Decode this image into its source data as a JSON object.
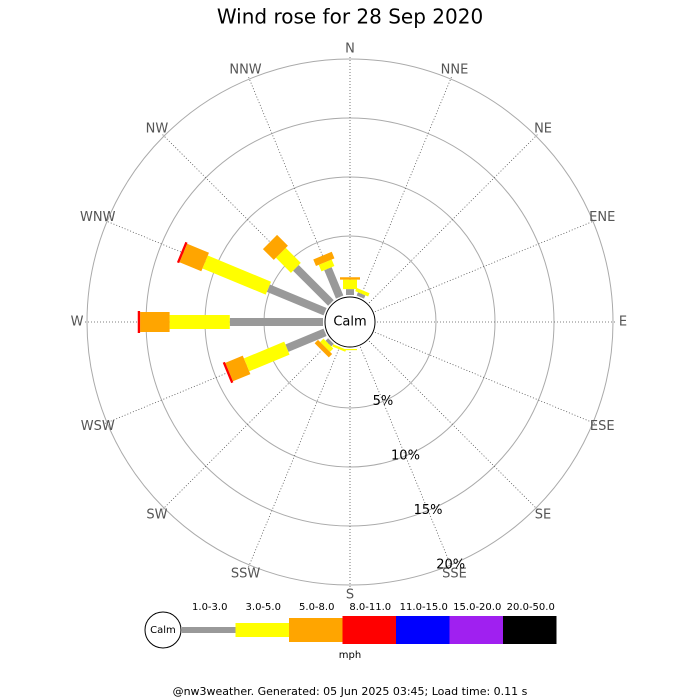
{
  "chart_data": {
    "type": "windrose",
    "title": "Wind rose for 28 Sep 2020",
    "calm_label": "Calm",
    "unit_label": "mph",
    "footer": "@nw3weather. Generated: 05 Jun 2025 03:45; Load time: 0.11 s",
    "categories": [
      "N",
      "NNE",
      "NE",
      "ENE",
      "E",
      "ESE",
      "SE",
      "SSE",
      "S",
      "SSW",
      "SW",
      "WSW",
      "W",
      "WNW",
      "NW",
      "NNW"
    ],
    "rlim": [
      0,
      20
    ],
    "rticks": [
      {
        "value": 5,
        "label": "5%"
      },
      {
        "value": 10,
        "label": "10%"
      },
      {
        "value": 15,
        "label": "15%"
      },
      {
        "value": 20,
        "label": "20%"
      }
    ],
    "series": [
      {
        "name": "1.0-3.0",
        "color": "#999999",
        "values": [
          0.5,
          0.3,
          0,
          0,
          0,
          0,
          0,
          0,
          0,
          0,
          0.3,
          3.5,
          7.9,
          5.2,
          4.2,
          2.6
        ]
      },
      {
        "name": "3.0-5.0",
        "color": "#ffff00",
        "values": [
          0.8,
          0.3,
          0,
          0,
          0,
          0,
          0,
          0,
          0.1,
          0.2,
          0.4,
          3.7,
          5.1,
          5.8,
          1.8,
          0.6
        ]
      },
      {
        "name": "5.0-8.0",
        "color": "#ffa500",
        "values": [
          0.2,
          0,
          0,
          0,
          0,
          0,
          0,
          0,
          0,
          0,
          0.4,
          1.6,
          2.5,
          2.0,
          1.3,
          0.6
        ]
      },
      {
        "name": "8.0-11.0",
        "color": "#ff0000",
        "values": [
          0,
          0,
          0,
          0,
          0,
          0,
          0,
          0,
          0,
          0,
          0,
          0.2,
          0.2,
          0.2,
          0,
          0
        ]
      },
      {
        "name": "11.0-15.0",
        "color": "#0000ff",
        "values": [
          0,
          0,
          0,
          0,
          0,
          0,
          0,
          0,
          0,
          0,
          0,
          0,
          0,
          0,
          0,
          0
        ]
      },
      {
        "name": "15.0-20.0",
        "color": "#a020f0",
        "values": [
          0,
          0,
          0,
          0,
          0,
          0,
          0,
          0,
          0,
          0,
          0,
          0,
          0,
          0,
          0,
          0
        ]
      },
      {
        "name": "20.0-50.0",
        "color": "#000000",
        "values": [
          0,
          0,
          0,
          0,
          0,
          0,
          0,
          0,
          0,
          0,
          0,
          0,
          0,
          0,
          0,
          0
        ]
      }
    ]
  }
}
